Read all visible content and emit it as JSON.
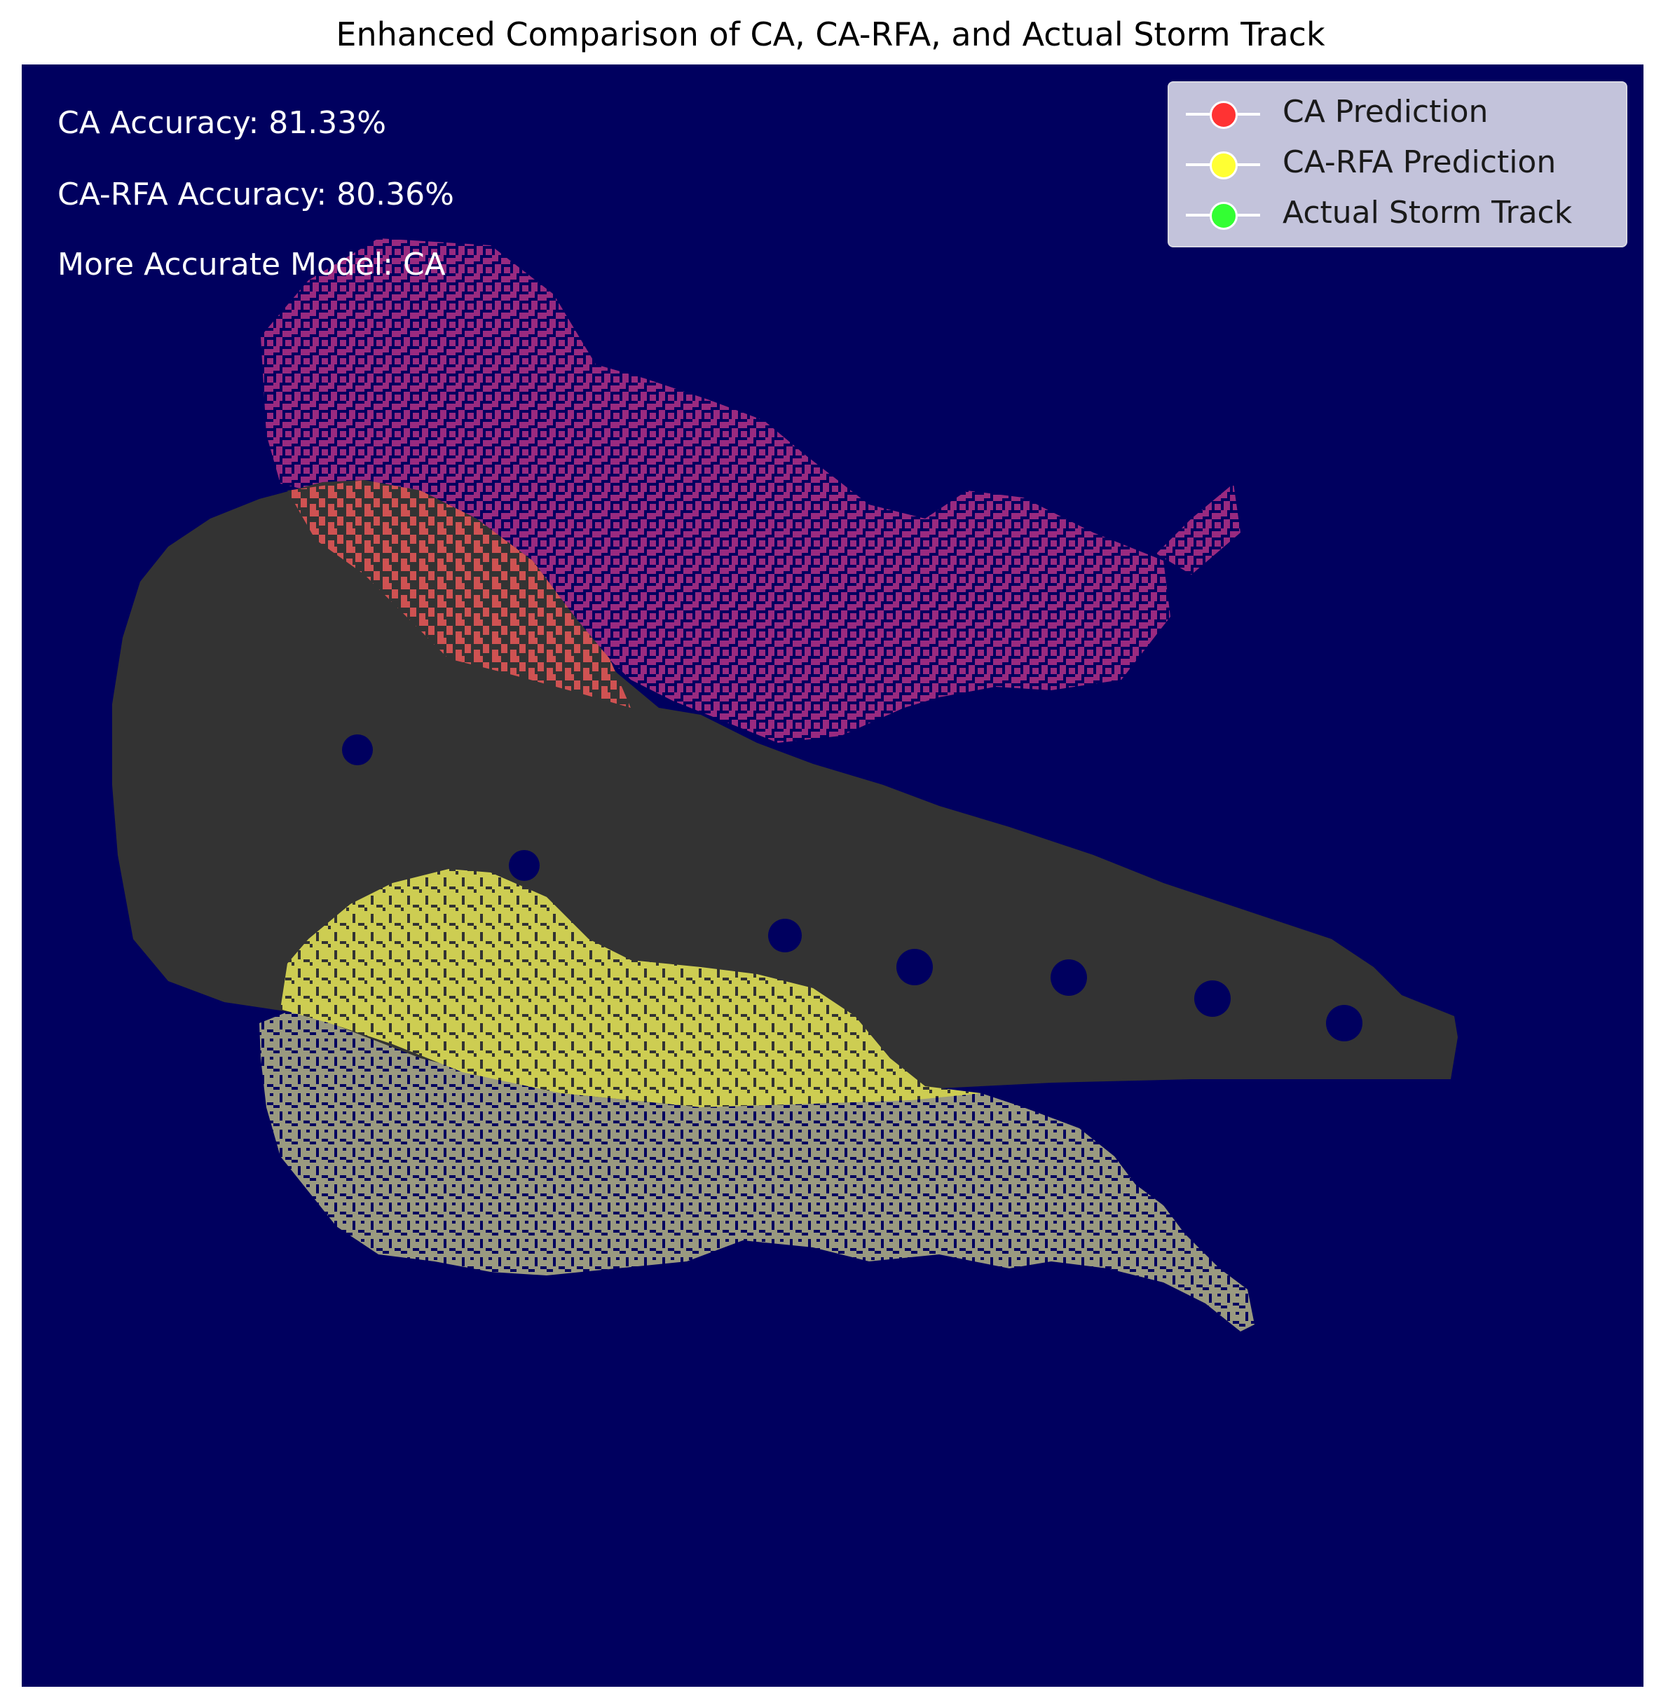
{
  "chart_data": {
    "type": "heatmap",
    "title": "Enhanced Comparison of CA, CA-RFA, and Actual Storm Track",
    "xlabel": "",
    "ylabel": "",
    "grid": false,
    "axes_visible": false,
    "legend_position": "top-right",
    "background_color": "#00005f",
    "legend": [
      {
        "name": "CA Prediction",
        "color": "#ff3333"
      },
      {
        "name": "CA-RFA Prediction",
        "color": "#ffff33"
      },
      {
        "name": "Actual Storm Track",
        "color": "#33ff33"
      }
    ],
    "annotations": [
      "CA Accuracy: 81.33%",
      "CA-RFA Accuracy: 80.36%",
      "More Accurate Model: CA"
    ],
    "region_colors": {
      "ca_only": "#992a80",
      "ca_and_track": "#cf5252",
      "track_only": "#333333",
      "carfa_and_track": "#cdcd52",
      "carfa_only": "#9a9a80"
    }
  }
}
